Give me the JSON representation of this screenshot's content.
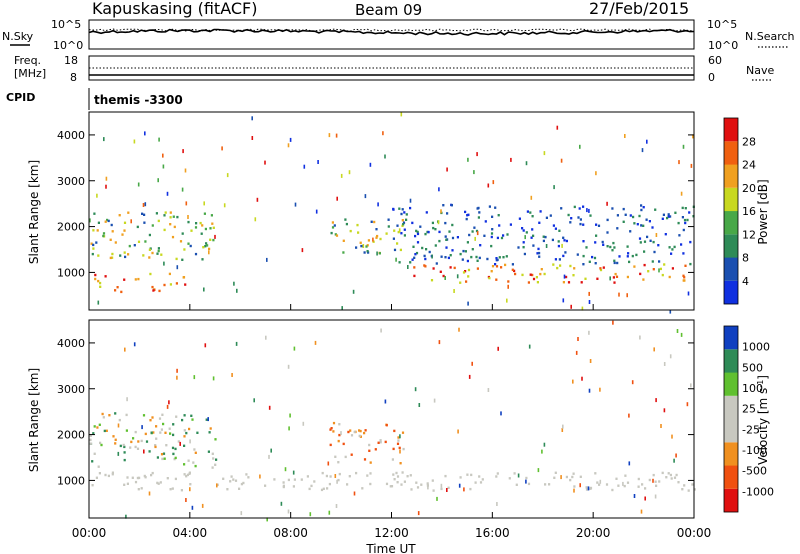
{
  "header": {
    "site_title": "Kapuskasing (fitACF)",
    "beam": "Beam 09",
    "date": "27/Feb/2015"
  },
  "cpid_label": "CPID",
  "cpid_value": "themis  -3300",
  "noise_panel": {
    "left_label": "N.Sky",
    "right_label": "N.Search",
    "left_ticks": [
      "10^5",
      "10^0"
    ],
    "right_ticks": [
      "10^5",
      "10^0"
    ]
  },
  "freq_panel": {
    "left_label_1": "Freq.",
    "left_label_2": "[MHz]",
    "right_label": "Nave",
    "left_ticks": [
      "18",
      "8"
    ],
    "right_ticks": [
      "60",
      "0"
    ]
  },
  "x_axis": {
    "label": "Time UT",
    "ticks": [
      "00:00",
      "04:00",
      "08:00",
      "12:00",
      "16:00",
      "20:00",
      "00:00"
    ]
  },
  "colors": {
    "power": [
      "#1030e0",
      "#1a4fb0",
      "#2e8b57",
      "#48a848",
      "#c8d820",
      "#f0a020",
      "#f06010",
      "#e01010"
    ],
    "velocity": [
      "#e01010",
      "#f05010",
      "#f09020",
      "#c8c8c0",
      "#c8c8c0",
      "#60c030",
      "#2e8b57",
      "#1040c0"
    ]
  },
  "chart_data": [
    {
      "type": "heatmap",
      "title": "Power",
      "ylabel": "Slant Range [km]",
      "xlabel": "Time UT",
      "xlim": [
        0,
        24
      ],
      "ylim": [
        180,
        4500
      ],
      "yticks": [
        "1000",
        "2000",
        "3000",
        "4000"
      ],
      "colorbar": {
        "label": "Power [dB]",
        "ticks": [
          "28",
          "24",
          "20",
          "16",
          "12",
          "8",
          "4"
        ],
        "range": [
          0,
          30
        ]
      },
      "features": [
        {
          "t": [
            0.0,
            3.8
          ],
          "range_km": [
            600,
            1000
          ],
          "level": "high"
        },
        {
          "t": [
            12.8,
            24.0
          ],
          "range_km": [
            800,
            1200
          ],
          "level": "high"
        },
        {
          "t": [
            0.0,
            5.0
          ],
          "range_km": [
            1300,
            2400
          ],
          "level": "mid"
        },
        {
          "t": [
            9.5,
            12.5
          ],
          "range_km": [
            1400,
            2200
          ],
          "level": "mid"
        },
        {
          "t": [
            12.0,
            24.0
          ],
          "range_km": [
            1200,
            2500
          ],
          "level": "low"
        }
      ]
    },
    {
      "type": "heatmap",
      "title": "Velocity",
      "ylabel": "Slant Range [km]",
      "xlabel": "Time UT",
      "xlim": [
        0,
        24
      ],
      "ylim": [
        180,
        4500
      ],
      "yticks": [
        "1000",
        "2000",
        "3000",
        "4000"
      ],
      "colorbar": {
        "label": "Velocity [m s^-1]",
        "ticks": [
          "1000",
          "500",
          "100",
          "25",
          "-25",
          "-100",
          "-500",
          "-1000"
        ],
        "range": [
          -1000,
          1000
        ]
      },
      "features": [
        {
          "t": [
            0.0,
            24.0
          ],
          "range_km": [
            800,
            1200
          ],
          "level": "ground"
        },
        {
          "t": [
            0.0,
            5.0
          ],
          "range_km": [
            1300,
            2500
          ],
          "level": "mixed"
        },
        {
          "t": [
            9.5,
            12.5
          ],
          "range_km": [
            1400,
            2300
          ],
          "level": "negative"
        }
      ]
    }
  ]
}
